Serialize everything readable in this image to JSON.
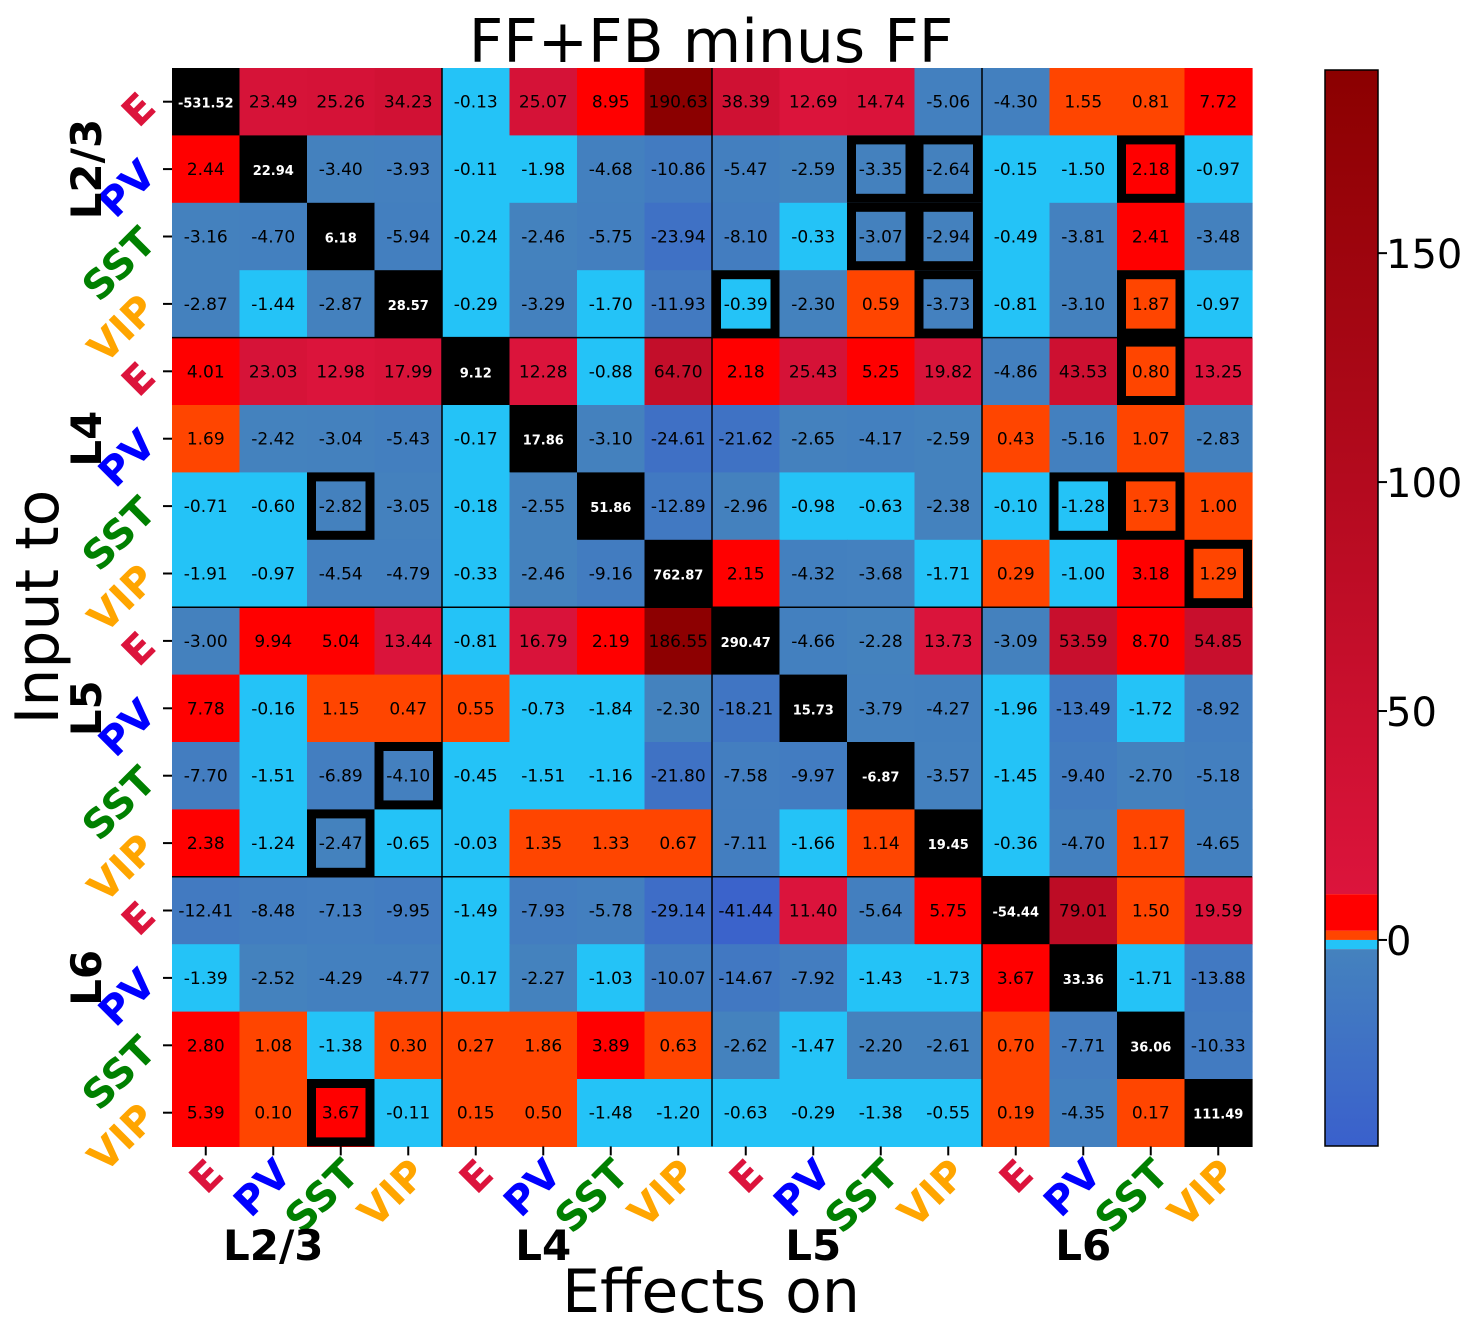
{
  "chart_data": {
    "type": "heatmap",
    "title": "FF+FB minus FF",
    "xlabel": "Effects on",
    "ylabel": "Input to",
    "cell_types": [
      "E",
      "PV",
      "SST",
      "VIP"
    ],
    "layers": [
      "L2/3",
      "L4",
      "L5",
      "L6"
    ],
    "type_colors": {
      "E": "#dc143c",
      "PV": "#0000ff",
      "SST": "#008000",
      "VIP": "#ffa500"
    },
    "values": [
      [
        -531.52,
        23.49,
        25.26,
        34.23,
        -0.13,
        25.07,
        8.95,
        190.63,
        38.39,
        12.69,
        14.74,
        -5.06,
        -4.3,
        1.55,
        0.81,
        7.72
      ],
      [
        2.44,
        22.94,
        -3.4,
        -3.93,
        -0.11,
        -1.98,
        -4.68,
        -10.86,
        -5.47,
        -2.59,
        -3.35,
        -2.64,
        -0.15,
        -1.5,
        2.18,
        -0.97
      ],
      [
        -3.16,
        -4.7,
        6.18,
        -5.94,
        -0.24,
        -2.46,
        -5.75,
        -23.94,
        -8.1,
        -0.33,
        -3.07,
        -2.94,
        -0.49,
        -3.81,
        2.41,
        -3.48
      ],
      [
        -2.87,
        -1.44,
        -2.87,
        28.57,
        -0.29,
        -3.29,
        -1.7,
        -11.93,
        -0.39,
        -2.3,
        0.59,
        -3.73,
        -0.81,
        -3.1,
        1.87,
        -0.97
      ],
      [
        4.01,
        23.03,
        12.98,
        17.99,
        9.12,
        12.28,
        -0.88,
        64.7,
        2.18,
        25.43,
        5.25,
        19.82,
        -4.86,
        43.53,
        0.8,
        13.25
      ],
      [
        1.69,
        -2.42,
        -3.04,
        -5.43,
        -0.17,
        17.86,
        -3.1,
        -24.61,
        -21.62,
        -2.65,
        -4.17,
        -2.59,
        0.43,
        -5.16,
        1.07,
        -2.83
      ],
      [
        -0.71,
        -0.6,
        -2.82,
        -3.05,
        -0.18,
        -2.55,
        51.86,
        -12.89,
        -2.96,
        -0.98,
        -0.63,
        -2.38,
        -0.1,
        -1.28,
        1.73,
        1.0
      ],
      [
        -1.91,
        -0.97,
        -4.54,
        -4.79,
        -0.33,
        -2.46,
        -9.16,
        762.87,
        2.15,
        -4.32,
        -3.68,
        -1.71,
        0.29,
        -1.0,
        3.18,
        1.29
      ],
      [
        -3.0,
        9.94,
        5.04,
        13.44,
        -0.81,
        16.79,
        2.19,
        186.55,
        290.47,
        -4.66,
        -2.28,
        13.73,
        -3.09,
        53.59,
        8.7,
        54.85
      ],
      [
        7.78,
        -0.16,
        1.15,
        0.47,
        0.55,
        -0.73,
        -1.84,
        -2.3,
        -18.21,
        15.73,
        -3.79,
        -4.27,
        -1.96,
        -13.49,
        -1.72,
        -8.92
      ],
      [
        -7.7,
        -1.51,
        -6.89,
        -4.1,
        -0.45,
        -1.51,
        -1.16,
        -21.8,
        -7.58,
        -9.97,
        -6.87,
        -3.57,
        -1.45,
        -9.4,
        -2.7,
        -5.18
      ],
      [
        2.38,
        -1.24,
        -2.47,
        -0.65,
        -0.03,
        1.35,
        1.33,
        0.67,
        -7.11,
        -1.66,
        1.14,
        19.45,
        -0.36,
        -4.7,
        1.17,
        -4.65
      ],
      [
        -12.41,
        -8.48,
        -7.13,
        -9.95,
        -1.49,
        -7.93,
        -5.78,
        -29.14,
        -41.44,
        11.4,
        -5.64,
        5.75,
        -54.44,
        79.01,
        1.5,
        19.59
      ],
      [
        -1.39,
        -2.52,
        -4.29,
        -4.77,
        -0.17,
        -2.27,
        -1.03,
        -10.07,
        -14.67,
        -7.92,
        -1.43,
        -1.73,
        3.67,
        33.36,
        -1.71,
        -13.88
      ],
      [
        2.8,
        1.08,
        -1.38,
        0.3,
        0.27,
        1.86,
        3.89,
        0.63,
        -2.62,
        -1.47,
        -2.2,
        -2.61,
        0.7,
        -7.71,
        36.06,
        -10.33
      ],
      [
        5.39,
        0.1,
        3.67,
        -0.11,
        0.15,
        0.5,
        -1.48,
        -1.2,
        -0.63,
        -0.29,
        -1.38,
        -0.55,
        0.19,
        -4.35,
        0.17,
        111.49
      ]
    ],
    "highlighted_cells": [
      [
        1,
        10
      ],
      [
        1,
        11
      ],
      [
        1,
        14
      ],
      [
        2,
        10
      ],
      [
        2,
        11
      ],
      [
        3,
        8
      ],
      [
        3,
        11
      ],
      [
        3,
        14
      ],
      [
        4,
        14
      ],
      [
        6,
        2
      ],
      [
        6,
        13
      ],
      [
        6,
        14
      ],
      [
        7,
        15
      ],
      [
        10,
        3
      ],
      [
        11,
        2
      ],
      [
        15,
        2
      ]
    ],
    "colorbar": {
      "ticks": [
        0,
        50,
        100,
        150
      ],
      "range": [
        -45,
        190
      ]
    }
  }
}
